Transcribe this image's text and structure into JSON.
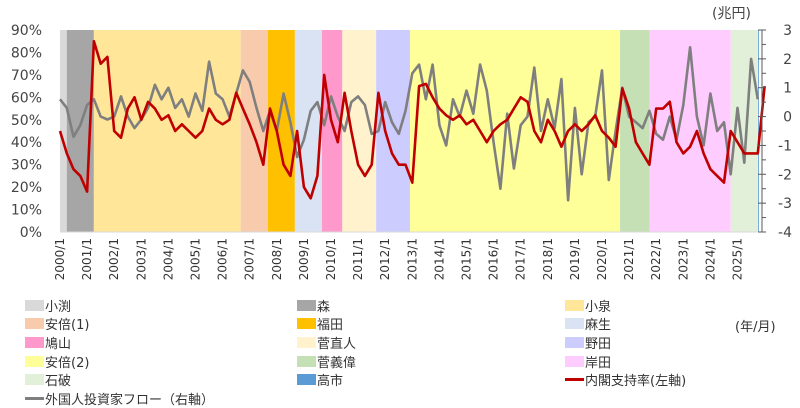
{
  "chart_data": {
    "type": "line",
    "title": "",
    "xlabel": "(年/月)",
    "left_axis": {
      "label": "内閣支持率",
      "ylim": [
        0,
        90
      ],
      "ticks": [
        "0%",
        "10%",
        "20%",
        "30%",
        "40%",
        "50%",
        "60%",
        "70%",
        "80%",
        "90%"
      ]
    },
    "right_axis": {
      "unit": "(兆円)",
      "ylim": [
        -4,
        3
      ],
      "ticks": [
        "-4",
        "-3",
        "-2",
        "-1",
        "0",
        "1",
        "2",
        "3"
      ]
    },
    "x_start": "2000/1",
    "x_step_months": 3,
    "x_ticks": [
      "2000/1",
      "2001/1",
      "2002/1",
      "2003/1",
      "2004/1",
      "2005/1",
      "2006/1",
      "2007/1",
      "2008/1",
      "2009/1",
      "2010/1",
      "2011/1",
      "2012/1",
      "2013/1",
      "2014/1",
      "2015/1",
      "2016/1",
      "2017/1",
      "2018/1",
      "2019/1",
      "2020/1",
      "2021/1",
      "2022/1",
      "2023/1",
      "2024/1",
      "2025/1"
    ],
    "eras": [
      {
        "name": "小渕",
        "start": "2000/1",
        "end": "2000/4",
        "color": "#d9d9d9"
      },
      {
        "name": "森",
        "start": "2000/4",
        "end": "2001/4",
        "color": "#a6a6a6"
      },
      {
        "name": "小泉",
        "start": "2001/4",
        "end": "2006/9",
        "color": "#ffe699"
      },
      {
        "name": "安倍(1)",
        "start": "2006/9",
        "end": "2007/9",
        "color": "#f8cbad"
      },
      {
        "name": "福田",
        "start": "2007/9",
        "end": "2008/9",
        "color": "#ffc000"
      },
      {
        "name": "麻生",
        "start": "2008/9",
        "end": "2009/9",
        "color": "#dae3f3"
      },
      {
        "name": "鳩山",
        "start": "2009/9",
        "end": "2010/6",
        "color": "#ff99cc"
      },
      {
        "name": "菅直人",
        "start": "2010/6",
        "end": "2011/9",
        "color": "#fff2cc"
      },
      {
        "name": "野田",
        "start": "2011/9",
        "end": "2012/12",
        "color": "#ccccff"
      },
      {
        "name": "安倍(2)",
        "start": "2012/12",
        "end": "2020/9",
        "color": "#ffff99"
      },
      {
        "name": "菅義偉",
        "start": "2020/9",
        "end": "2021/10",
        "color": "#c5e0b4"
      },
      {
        "name": "岸田",
        "start": "2021/10",
        "end": "2024/10",
        "color": "#ffccff"
      },
      {
        "name": "石破",
        "start": "2024/10",
        "end": "2025/10",
        "color": "#e2f0d9"
      },
      {
        "name": "高市",
        "start": "2025/10",
        "end": "2025/11",
        "color": "#5b9bd5"
      }
    ],
    "series": [
      {
        "name": "内閣支持率(左軸)",
        "axis": "left",
        "color": "#c00000",
        "values": [
          45,
          35,
          28,
          25,
          18,
          85,
          75,
          78,
          45,
          42,
          55,
          60,
          50,
          58,
          55,
          50,
          52,
          45,
          48,
          45,
          42,
          45,
          55,
          50,
          48,
          50,
          62,
          55,
          48,
          40,
          30,
          55,
          45,
          30,
          25,
          45,
          20,
          15,
          25,
          70,
          50,
          40,
          62,
          45,
          30,
          25,
          30,
          62,
          45,
          35,
          30,
          30,
          22,
          65,
          66,
          60,
          55,
          52,
          50,
          52,
          48,
          50,
          45,
          40,
          45,
          48,
          50,
          55,
          60,
          58,
          45,
          40,
          50,
          45,
          38,
          45,
          48,
          45,
          48,
          52,
          45,
          42,
          38,
          64,
          55,
          40,
          35,
          30,
          55,
          55,
          58,
          40,
          35,
          38,
          45,
          35,
          28,
          25,
          22,
          45,
          40,
          35,
          35,
          35,
          65
        ]
      },
      {
        "name": "外国人投資家フロー(右軸)",
        "axis": "right",
        "color": "#7f7f7f",
        "values": [
          0.6,
          0.3,
          -0.7,
          -0.3,
          0.4,
          0.6,
          0.0,
          -0.1,
          0.0,
          0.7,
          0.0,
          -0.4,
          -0.1,
          0.3,
          1.1,
          0.6,
          1.0,
          0.3,
          0.6,
          0.0,
          0.8,
          0.2,
          1.9,
          0.8,
          0.6,
          0.0,
          0.8,
          1.6,
          1.2,
          0.3,
          -0.5,
          0.2,
          -0.5,
          0.8,
          -0.2,
          -1.4,
          -0.8,
          0.2,
          0.5,
          -0.3,
          0.7,
          0.0,
          -0.5,
          0.5,
          0.7,
          0.4,
          -0.6,
          -0.5,
          0.5,
          -0.2,
          -0.6,
          0.2,
          1.5,
          1.8,
          0.6,
          1.8,
          -0.3,
          -1.0,
          0.6,
          0.0,
          0.9,
          0.1,
          1.8,
          0.9,
          -0.9,
          -2.5,
          0.1,
          -1.8,
          -0.3,
          0.0,
          1.7,
          -0.5,
          0.6,
          -0.4,
          1.3,
          -2.9,
          0.3,
          -2.0,
          -0.2,
          0.0,
          1.6,
          -2.2,
          -0.5,
          1.0,
          0.0,
          -0.2,
          -0.4,
          0.2,
          -0.6,
          -0.8,
          0.0,
          -0.8,
          0.4,
          2.4,
          0.0,
          -1.0,
          0.8,
          -0.5,
          -0.2,
          -2.0,
          0.3,
          -1.6,
          2.0,
          0.6
        ]
      }
    ],
    "legend_placement": "bottom"
  },
  "legend": {
    "items": [
      "小渕",
      "森",
      "小泉",
      "安倍(1)",
      "福田",
      "麻生",
      "鳩山",
      "菅直人",
      "野田",
      "安倍(2)",
      "菅義偉",
      "岸田",
      "石破",
      "高市",
      "内閣支持率(左軸)",
      "外国人投資家フロー（右軸）"
    ]
  },
  "unit_right": "(兆円)",
  "unit_x": "(年/月)"
}
